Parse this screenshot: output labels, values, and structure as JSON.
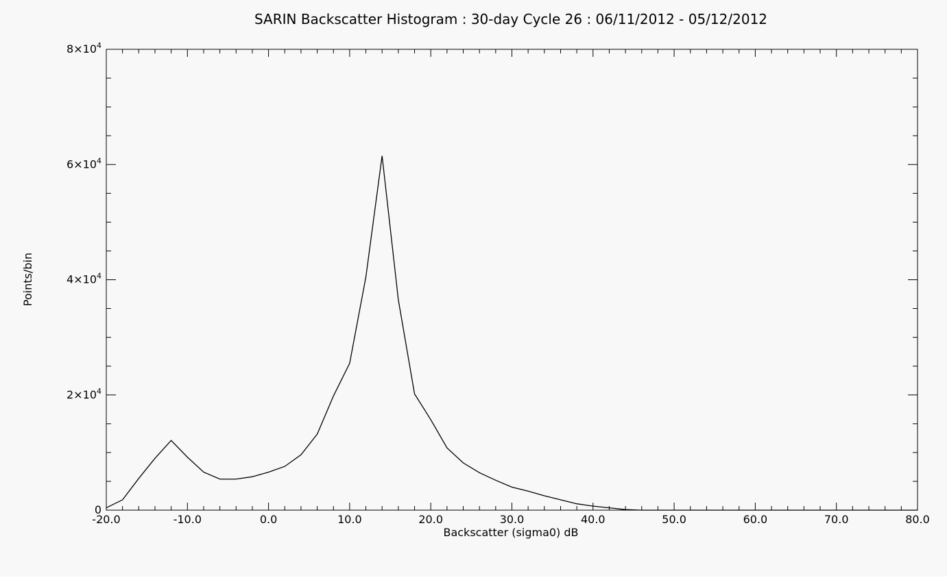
{
  "chart_data": {
    "type": "line",
    "title": "SARIN Backscatter Histogram : 30-day Cycle 26 : 06/11/2012 - 05/12/2012",
    "xlabel": "Backscatter (sigma0) dB",
    "ylabel": "Points/bin",
    "xlim": [
      -20,
      80
    ],
    "ylim": [
      0,
      80000
    ],
    "x_ticks": [
      "-20.0",
      "-10.0",
      "0.0",
      "10.0",
      "20.0",
      "30.0",
      "40.0",
      "50.0",
      "60.0",
      "70.0",
      "80.0"
    ],
    "y_ticks": [
      {
        "value": 0,
        "mantissa": "0",
        "exponent": ""
      },
      {
        "value": 20000,
        "mantissa": "2×10",
        "exponent": "4"
      },
      {
        "value": 40000,
        "mantissa": "4×10",
        "exponent": "4"
      },
      {
        "value": 60000,
        "mantissa": "6×10",
        "exponent": "4"
      },
      {
        "value": 80000,
        "mantissa": "8×10",
        "exponent": "4"
      }
    ],
    "grid": false,
    "series": [
      {
        "x": [
          -20,
          -18,
          -16,
          -14,
          -12,
          -10,
          -8,
          -6,
          -4,
          -2,
          0,
          2,
          4,
          6,
          8,
          10,
          12,
          14,
          16,
          18,
          20,
          22,
          24,
          26,
          28,
          30,
          32,
          34,
          36,
          38,
          40,
          42,
          44,
          46,
          48,
          50,
          55,
          60,
          65,
          70,
          75,
          80
        ],
        "values": [
          400,
          1800,
          5500,
          9000,
          12100,
          9200,
          6600,
          5400,
          5400,
          5800,
          6600,
          7600,
          9600,
          13200,
          19800,
          25500,
          40500,
          61500,
          36500,
          20200,
          15700,
          10800,
          8200,
          6500,
          5200,
          4000,
          3300,
          2500,
          1800,
          1100,
          700,
          400,
          100,
          0,
          0,
          0,
          0,
          0,
          0,
          0,
          0,
          0
        ]
      }
    ],
    "colors": {
      "line": "#000000",
      "axes": "#000000",
      "background": "#f8f8f8"
    }
  }
}
